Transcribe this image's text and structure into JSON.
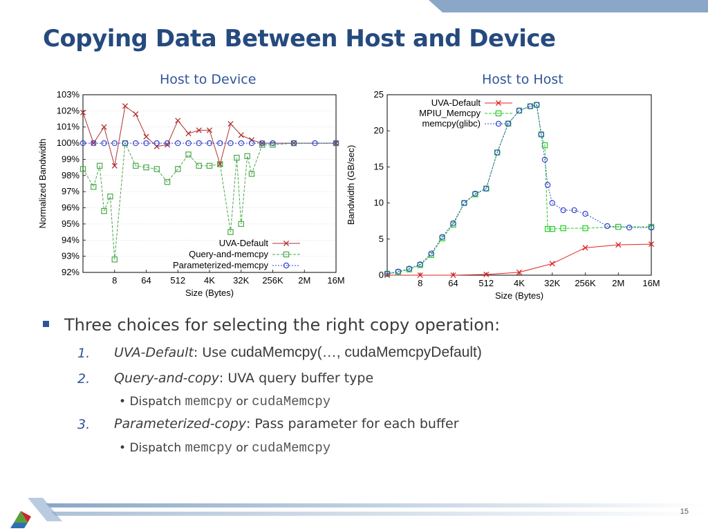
{
  "slide": {
    "title": "Copying Data Between Host and Device",
    "page_number": "15"
  },
  "left_chart": {
    "title": "Host to Device",
    "xlabel": "Size (Bytes)",
    "ylabel": "Normalized Bandwidth",
    "x_ticks": [
      "8",
      "64",
      "512",
      "4K",
      "32K",
      "256K",
      "2M",
      "16M"
    ],
    "y_ticks": [
      "103%",
      "102%",
      "101%",
      "100%",
      "99%",
      "98%",
      "97%",
      "96%",
      "95%",
      "94%",
      "93%",
      "92%"
    ],
    "legend": [
      "UVA-Default",
      "Query-and-memcpy",
      "Parameterized-memcpy"
    ]
  },
  "right_chart": {
    "title": "Host to Host",
    "xlabel": "Size (Bytes)",
    "ylabel": "Bandwidth (GB/sec)",
    "x_ticks": [
      "8",
      "64",
      "512",
      "4K",
      "32K",
      "256K",
      "2M",
      "16M"
    ],
    "y_ticks": [
      "25",
      "20",
      "15",
      "10",
      "5",
      "0"
    ],
    "legend": [
      "UVA-Default",
      "MPIU_Memcpy",
      "memcpy(glibc)"
    ]
  },
  "chart_data": [
    {
      "type": "scatter",
      "xlabel": "Size (Bytes)",
      "ylabel": "Normalized Bandwidth",
      "x_scale": "log2",
      "ylim": [
        92,
        103
      ],
      "series": [
        {
          "name": "UVA-Default",
          "color": "#b03030",
          "marker": "x",
          "x": [
            1,
            2,
            4,
            8,
            16,
            32,
            64,
            128,
            256,
            512,
            1024,
            2048,
            4096,
            8192,
            16384,
            32768,
            65536,
            131072,
            1048576,
            16777216
          ],
          "y": [
            101.9,
            100.0,
            101.0,
            98.6,
            102.3,
            101.8,
            100.4,
            99.8,
            99.9,
            101.4,
            100.6,
            100.8,
            100.8,
            98.7,
            101.2,
            100.5,
            100.2,
            100.0,
            100.0,
            100.0
          ]
        },
        {
          "name": "Query-and-memcpy",
          "color": "#4aa84a",
          "marker": "square",
          "x": [
            1,
            2,
            3,
            4,
            6,
            8,
            16,
            32,
            64,
            128,
            256,
            512,
            1024,
            2048,
            4096,
            8192,
            16384,
            24576,
            32768,
            49152,
            65536,
            131072,
            262144,
            1048576,
            16777216
          ],
          "y": [
            98.4,
            97.3,
            98.6,
            95.8,
            96.7,
            92.8,
            100.0,
            98.6,
            98.5,
            98.4,
            97.6,
            98.4,
            99.3,
            98.6,
            98.6,
            98.7,
            94.5,
            99.1,
            95.0,
            99.2,
            98.1,
            99.9,
            99.9,
            100.0,
            100.0
          ]
        },
        {
          "name": "Parameterized-memcpy",
          "color": "#3344cc",
          "marker": "circle",
          "x": [
            1,
            2,
            4,
            8,
            16,
            32,
            64,
            128,
            256,
            512,
            1024,
            2048,
            4096,
            8192,
            16384,
            32768,
            65536,
            131072,
            262144,
            1048576,
            4194304,
            16777216
          ],
          "y": [
            100,
            100,
            100,
            100,
            100,
            100,
            100,
            100,
            100,
            100,
            100,
            100,
            100,
            100,
            100,
            100,
            100,
            100,
            100,
            100,
            100,
            100
          ]
        }
      ]
    },
    {
      "type": "line",
      "xlabel": "Size (Bytes)",
      "ylabel": "Bandwidth (GB/sec)",
      "x_scale": "log2",
      "ylim": [
        0,
        25
      ],
      "series": [
        {
          "name": "UVA-Default",
          "color": "#e02020",
          "marker": "x",
          "x": [
            1,
            8,
            64,
            512,
            4096,
            32768,
            262144,
            2097152,
            16777216
          ],
          "y": [
            0.0,
            0.0,
            0.0,
            0.1,
            0.4,
            1.6,
            3.8,
            4.2,
            4.3
          ]
        },
        {
          "name": "MPIU_Memcpy",
          "color": "#22cc22",
          "marker": "square",
          "x": [
            1,
            2,
            4,
            8,
            16,
            32,
            64,
            128,
            256,
            512,
            1024,
            2048,
            4096,
            8192,
            12288,
            16384,
            20480,
            24576,
            32768,
            65536,
            262144,
            2097152,
            16777216
          ],
          "y": [
            0.2,
            0.4,
            0.8,
            1.4,
            2.8,
            5.1,
            7.0,
            10.0,
            11.2,
            12.0,
            17.0,
            21.0,
            22.8,
            23.4,
            23.6,
            19.5,
            18.0,
            6.4,
            6.4,
            6.5,
            6.5,
            6.7,
            6.7
          ]
        },
        {
          "name": "memcpy(glibc)",
          "color": "#3344cc",
          "marker": "circle",
          "x": [
            1,
            2,
            4,
            8,
            16,
            32,
            64,
            128,
            256,
            512,
            1024,
            2048,
            4096,
            8192,
            12288,
            16384,
            20480,
            24576,
            32768,
            65536,
            131072,
            262144,
            1048576,
            4194304,
            16777216
          ],
          "y": [
            0.2,
            0.5,
            0.9,
            1.5,
            3.0,
            5.3,
            7.2,
            10.0,
            11.3,
            12.0,
            17.0,
            21.0,
            22.8,
            23.4,
            23.6,
            19.5,
            16.0,
            12.5,
            10.0,
            9.0,
            9.0,
            8.5,
            6.8,
            6.6,
            6.6
          ]
        }
      ]
    }
  ],
  "bullets": {
    "main": "Three choices for selecting the right copy operation:",
    "items": [
      {
        "num": "1.",
        "name": "UVA-Default",
        "sep": ": Use ",
        "code": "cudaMemcpy(…, cudaMemcpyDefault)"
      },
      {
        "num": "2.",
        "name": "Query-and-copy",
        "sep": ": UVA query buffer type"
      },
      {
        "num": "3.",
        "name": "Parameterized-copy",
        "sep": ": Pass parameter for each buffer"
      }
    ],
    "sub": {
      "prefix": "Dispatch ",
      "code1": "memcpy",
      "mid": " or ",
      "code2": "cudaMemcpy"
    }
  },
  "colors": {
    "title": "#254a7e",
    "accent": "#2f5597",
    "bar": "#8aa7c7"
  }
}
